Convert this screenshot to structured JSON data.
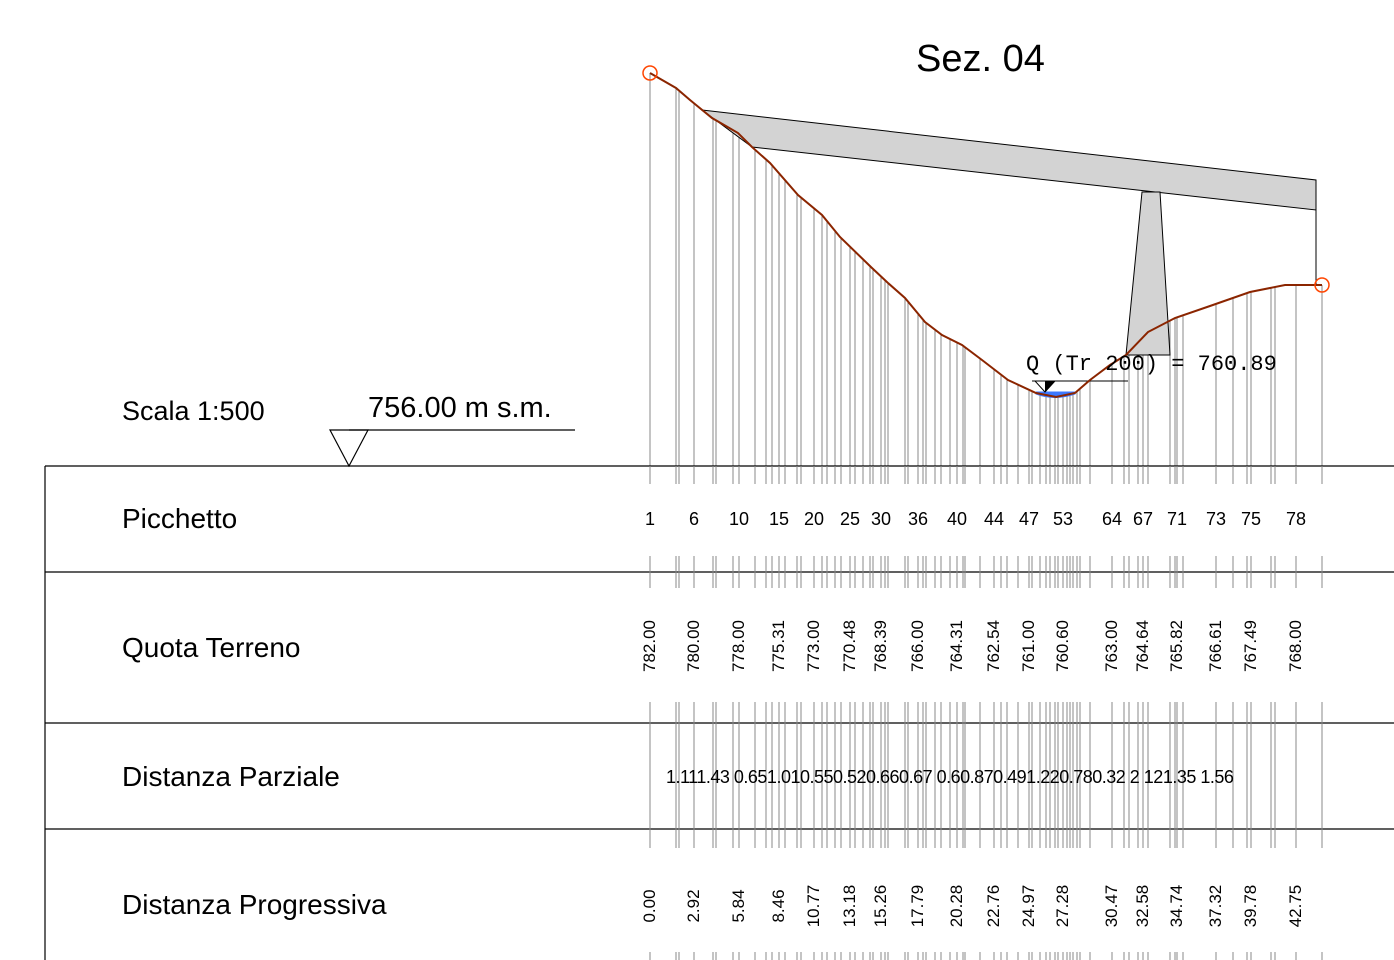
{
  "title": "Sez. 04",
  "scale_label": "Scala 1:500",
  "datum_label": "756.00 m s.m.",
  "discharge_label": "Q (Tr 200) = 760.89",
  "rows": {
    "picchetto": "Picchetto",
    "quota": "Quota Terreno",
    "parziale": "Distanza Parziale",
    "progressiva": "Distanza Progressiva"
  },
  "picchetti": [
    "1",
    "6",
    "10",
    "15",
    "20",
    "25",
    "30",
    "36",
    "40",
    "44",
    "47",
    "53",
    "64",
    "67",
    "71",
    "73",
    "75",
    "78"
  ],
  "quote": [
    "782.00",
    "780.00",
    "778.00",
    "775.31",
    "773.00",
    "770.48",
    "768.39",
    "766.00",
    "764.31",
    "762.54",
    "761.00",
    "760.60",
    "763.00",
    "764.64",
    "765.82",
    "766.61",
    "767.49",
    "768.00"
  ],
  "parziali": "1.111.43 0.651.010.550.520.660.67 0.60.870.491.220.780.32 2 121.35 1.56",
  "progressive": [
    "0.00",
    "2.92",
    "5.84",
    "8.46",
    "10.77",
    "13.18",
    "15.26",
    "17.79",
    "20.28",
    "22.76",
    "24.97",
    "27.28",
    "30.47",
    "32.58",
    "34.74",
    "37.32",
    "39.78",
    "42.75"
  ],
  "colors": {
    "terrain": "#8b2500",
    "endpoint": "#ff4500",
    "structure_fill": "#d3d3d3",
    "water": "#3c78ff",
    "lines": "#000000"
  }
}
